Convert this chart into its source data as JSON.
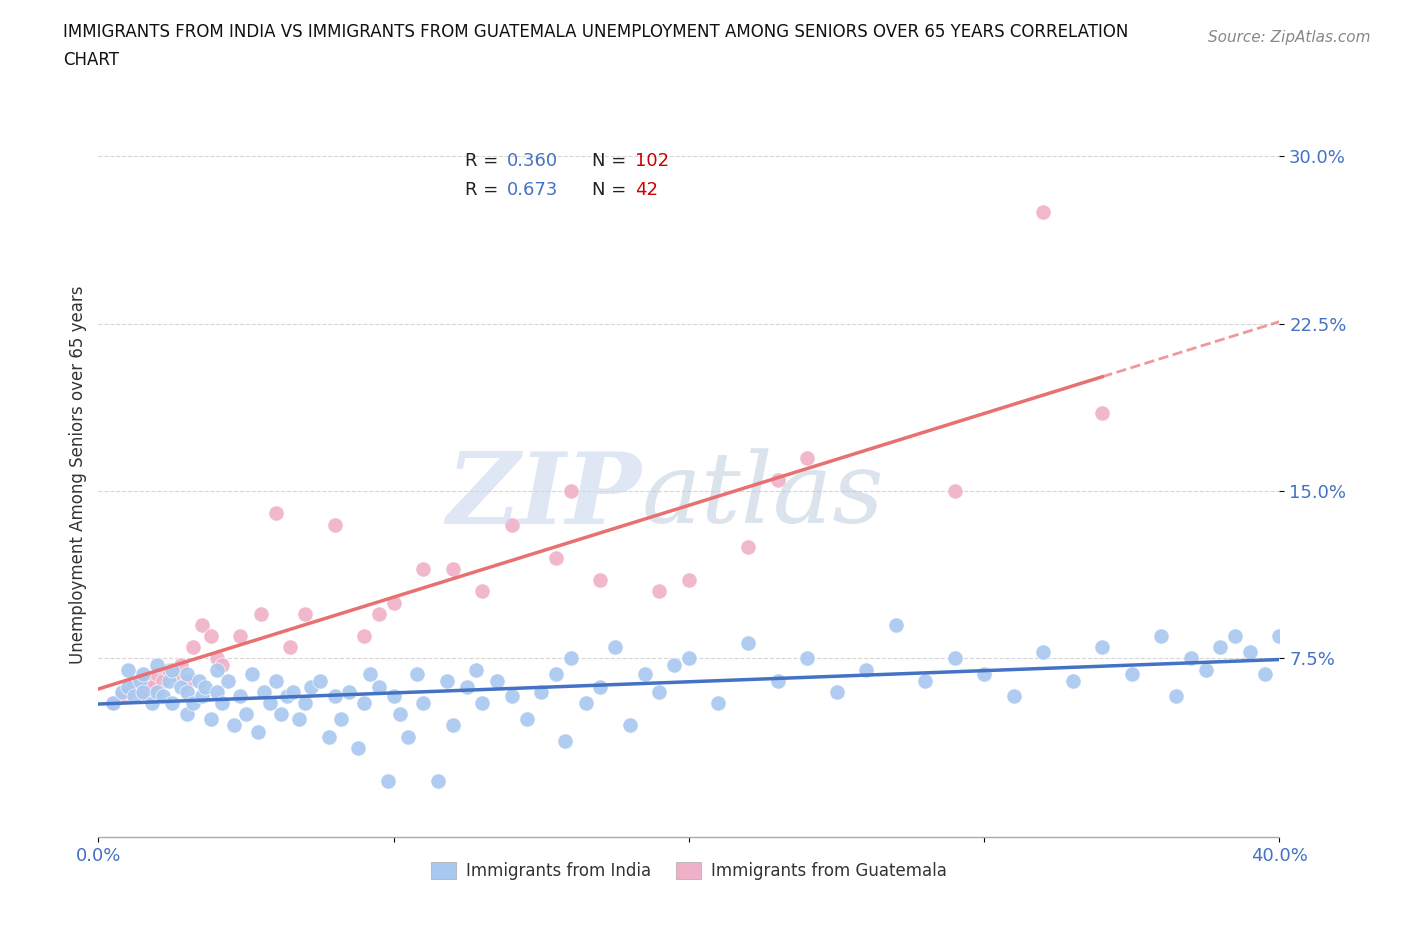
{
  "title_line1": "IMMIGRANTS FROM INDIA VS IMMIGRANTS FROM GUATEMALA UNEMPLOYMENT AMONG SENIORS OVER 65 YEARS CORRELATION",
  "title_line2": "CHART",
  "source": "Source: ZipAtlas.com",
  "ylabel": "Unemployment Among Seniors over 65 years",
  "xlim": [
    0.0,
    0.4
  ],
  "ylim": [
    -0.005,
    0.32
  ],
  "yticks": [
    0.075,
    0.15,
    0.225,
    0.3
  ],
  "ytick_labels": [
    "7.5%",
    "15.0%",
    "22.5%",
    "30.0%"
  ],
  "xticks": [
    0.0,
    0.1,
    0.2,
    0.3,
    0.4
  ],
  "xtick_labels": [
    "0.0%",
    "",
    "",
    "",
    "40.0%"
  ],
  "india_color": "#a8c8f0",
  "guatemala_color": "#f0b0c8",
  "india_line_color": "#4472c4",
  "guatemala_line_color": "#e87070",
  "tick_label_color": "#4472c4",
  "india_R": 0.36,
  "india_N": 102,
  "guatemala_R": 0.673,
  "guatemala_N": 42,
  "background_color": "#ffffff",
  "india_scatter_x": [
    0.005,
    0.008,
    0.01,
    0.01,
    0.012,
    0.014,
    0.015,
    0.015,
    0.018,
    0.02,
    0.02,
    0.022,
    0.024,
    0.025,
    0.025,
    0.028,
    0.03,
    0.03,
    0.03,
    0.032,
    0.034,
    0.035,
    0.036,
    0.038,
    0.04,
    0.04,
    0.042,
    0.044,
    0.046,
    0.048,
    0.05,
    0.052,
    0.054,
    0.056,
    0.058,
    0.06,
    0.062,
    0.064,
    0.066,
    0.068,
    0.07,
    0.072,
    0.075,
    0.078,
    0.08,
    0.082,
    0.085,
    0.088,
    0.09,
    0.092,
    0.095,
    0.098,
    0.1,
    0.102,
    0.105,
    0.108,
    0.11,
    0.115,
    0.118,
    0.12,
    0.125,
    0.128,
    0.13,
    0.135,
    0.14,
    0.145,
    0.15,
    0.155,
    0.158,
    0.16,
    0.165,
    0.17,
    0.175,
    0.18,
    0.185,
    0.19,
    0.195,
    0.2,
    0.21,
    0.22,
    0.23,
    0.24,
    0.25,
    0.26,
    0.27,
    0.28,
    0.29,
    0.3,
    0.31,
    0.32,
    0.33,
    0.34,
    0.35,
    0.36,
    0.365,
    0.37,
    0.375,
    0.38,
    0.385,
    0.39,
    0.395,
    0.4
  ],
  "india_scatter_y": [
    0.055,
    0.06,
    0.062,
    0.07,
    0.058,
    0.065,
    0.06,
    0.068,
    0.055,
    0.06,
    0.072,
    0.058,
    0.065,
    0.055,
    0.07,
    0.062,
    0.06,
    0.068,
    0.05,
    0.055,
    0.065,
    0.058,
    0.062,
    0.048,
    0.06,
    0.07,
    0.055,
    0.065,
    0.045,
    0.058,
    0.05,
    0.068,
    0.042,
    0.06,
    0.055,
    0.065,
    0.05,
    0.058,
    0.06,
    0.048,
    0.055,
    0.062,
    0.065,
    0.04,
    0.058,
    0.048,
    0.06,
    0.035,
    0.055,
    0.068,
    0.062,
    0.02,
    0.058,
    0.05,
    0.04,
    0.068,
    0.055,
    0.02,
    0.065,
    0.045,
    0.062,
    0.07,
    0.055,
    0.065,
    0.058,
    0.048,
    0.06,
    0.068,
    0.038,
    0.075,
    0.055,
    0.062,
    0.08,
    0.045,
    0.068,
    0.06,
    0.072,
    0.075,
    0.055,
    0.082,
    0.065,
    0.075,
    0.06,
    0.07,
    0.09,
    0.065,
    0.075,
    0.068,
    0.058,
    0.078,
    0.065,
    0.08,
    0.068,
    0.085,
    0.058,
    0.075,
    0.07,
    0.08,
    0.085,
    0.078,
    0.068,
    0.085
  ],
  "guatemala_scatter_x": [
    0.005,
    0.008,
    0.01,
    0.012,
    0.015,
    0.016,
    0.018,
    0.02,
    0.022,
    0.024,
    0.026,
    0.028,
    0.03,
    0.032,
    0.035,
    0.038,
    0.04,
    0.042,
    0.048,
    0.055,
    0.06,
    0.065,
    0.07,
    0.08,
    0.09,
    0.095,
    0.1,
    0.11,
    0.12,
    0.13,
    0.14,
    0.155,
    0.16,
    0.17,
    0.19,
    0.2,
    0.22,
    0.23,
    0.24,
    0.29,
    0.32,
    0.34
  ],
  "guatemala_scatter_y": [
    0.055,
    0.058,
    0.06,
    0.062,
    0.06,
    0.065,
    0.062,
    0.068,
    0.065,
    0.07,
    0.068,
    0.072,
    0.065,
    0.08,
    0.09,
    0.085,
    0.075,
    0.072,
    0.085,
    0.095,
    0.14,
    0.08,
    0.095,
    0.135,
    0.085,
    0.095,
    0.1,
    0.115,
    0.115,
    0.105,
    0.135,
    0.12,
    0.15,
    0.11,
    0.105,
    0.11,
    0.125,
    0.155,
    0.165,
    0.15,
    0.275,
    0.185
  ]
}
